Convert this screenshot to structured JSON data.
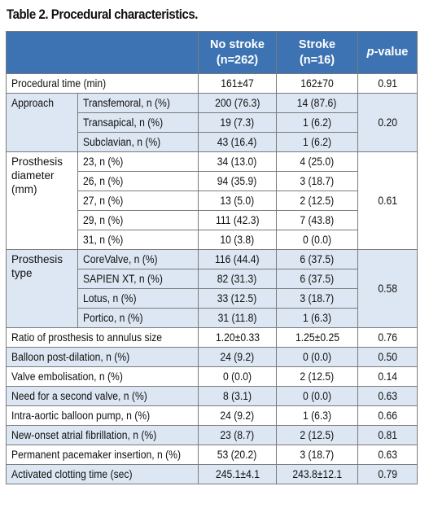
{
  "title": "Table 2. Procedural characteristics.",
  "header": {
    "col_no_stroke_line1": "No stroke",
    "col_no_stroke_line2": "(n=262)",
    "col_stroke_line1": "Stroke",
    "col_stroke_line2": "(n=16)",
    "col_pvalue_italic": "p",
    "col_pvalue_rest": "-value"
  },
  "rows": {
    "procedural_time": {
      "label": "Procedural time (min)",
      "no_stroke": "161±47",
      "stroke": "162±70",
      "p": "0.91"
    },
    "approach": {
      "group": "Approach",
      "p": "0.20",
      "items": [
        {
          "label": "Transfemoral, n (%)",
          "no_stroke": "200 (76.3)",
          "stroke": "14 (87.6)"
        },
        {
          "label": "Transapical, n (%)",
          "no_stroke": "19 (7.3)",
          "stroke": "1 (6.2)"
        },
        {
          "label": "Subclavian, n (%)",
          "no_stroke": "43 (16.4)",
          "stroke": "1 (6.2)"
        }
      ]
    },
    "prosthesis_diameter": {
      "group": "Prosthesis diameter (mm)",
      "p": "0.61",
      "items": [
        {
          "label": "23, n (%)",
          "no_stroke": "34 (13.0)",
          "stroke": "4 (25.0)"
        },
        {
          "label": "26, n (%)",
          "no_stroke": "94 (35.9)",
          "stroke": "3 (18.7)"
        },
        {
          "label": "27, n (%)",
          "no_stroke": "13 (5.0)",
          "stroke": "2 (12.5)"
        },
        {
          "label": "29, n (%)",
          "no_stroke": "111 (42.3)",
          "stroke": "7 (43.8)"
        },
        {
          "label": "31, n (%)",
          "no_stroke": "10 (3.8)",
          "stroke": "0 (0.0)"
        }
      ]
    },
    "prosthesis_type": {
      "group": "Prosthesis type",
      "p": "0.58",
      "items": [
        {
          "label": "CoreValve, n (%)",
          "no_stroke": "116 (44.4)",
          "stroke": "6 (37.5)"
        },
        {
          "label": "SAPIEN XT, n (%)",
          "no_stroke": "82 (31.3)",
          "stroke": "6 (37.5)"
        },
        {
          "label": "Lotus, n (%)",
          "no_stroke": "33 (12.5)",
          "stroke": "3 (18.7)"
        },
        {
          "label": "Portico, n (%)",
          "no_stroke": "31 (11.8)",
          "stroke": "1 (6.3)"
        }
      ]
    },
    "singles": [
      {
        "label": "Ratio of prosthesis to annulus size",
        "no_stroke": "1.20±0.33",
        "stroke": "1.25±0.25",
        "p": "0.76"
      },
      {
        "label": "Balloon post-dilation, n (%)",
        "no_stroke": "24 (9.2)",
        "stroke": "0 (0.0)",
        "p": "0.50"
      },
      {
        "label": "Valve embolisation, n (%)",
        "no_stroke": "0 (0.0)",
        "stroke": "2 (12.5)",
        "p": "0.14"
      },
      {
        "label": "Need for a second valve, n (%)",
        "no_stroke": "8 (3.1)",
        "stroke": "0 (0.0)",
        "p": "0.63"
      },
      {
        "label": "Intra-aortic balloon pump, n (%)",
        "no_stroke": "24 (9.2)",
        "stroke": "1 (6.3)",
        "p": "0.66"
      },
      {
        "label": "New-onset atrial fibrillation, n (%)",
        "no_stroke": "23 (8.7)",
        "stroke": "2 (12.5)",
        "p": "0.81"
      },
      {
        "label": "Permanent pacemaker insertion, n (%)",
        "no_stroke": "53 (20.2)",
        "stroke": "3 (18.7)",
        "p": "0.63"
      },
      {
        "label": "Activated clotting time (sec)",
        "no_stroke": "245.1±4.1",
        "stroke": "243.8±12.1",
        "p": "0.79"
      }
    ]
  }
}
